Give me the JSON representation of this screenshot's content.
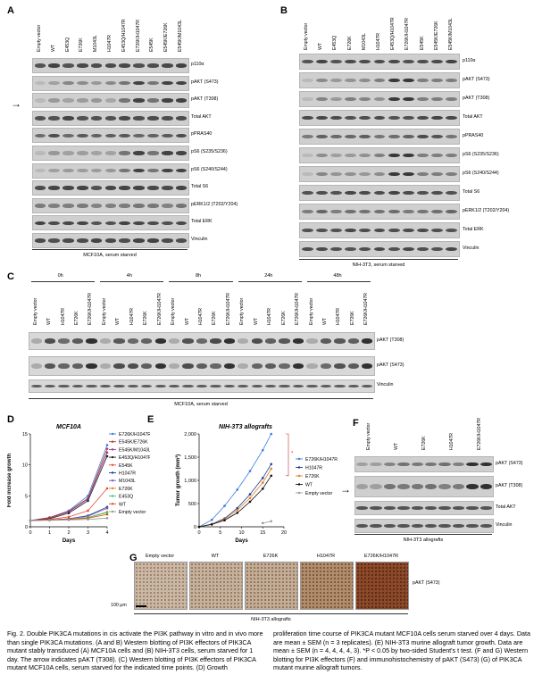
{
  "panels": {
    "A": "A",
    "B": "B",
    "C": "C",
    "D": "D",
    "E": "E",
    "F": "F",
    "G": "G"
  },
  "panelA": {
    "lanes": [
      "Empty vector",
      "WT",
      "E453Q",
      "E726K",
      "M1043L",
      "H1047R",
      "E453Q/H1047R",
      "E726K/H1047R",
      "E545K",
      "E545K/E726K",
      "E545K/M1043L"
    ],
    "rows": [
      "p110α",
      "pAKT (S473)",
      "pAKT (T308)",
      "Total AKT",
      "pPRAS40",
      "pS6 (S235/S236)",
      "pS6 (S240/S244)",
      "Total S6",
      "pERK1/2 (T202/Y204)",
      "Total ERK",
      "Vinculin"
    ],
    "caption": "MCF10A, serum starved",
    "arrow": "→"
  },
  "panelB": {
    "lanes": [
      "Empty vector",
      "WT",
      "E453Q",
      "E726K",
      "M1043L",
      "H1047R",
      "E453Q/H1047R",
      "E726K/H1047R",
      "E545K",
      "E545K/E726K",
      "E545K/M1043L"
    ],
    "rows": [
      "p110α",
      "pAKT (S473)",
      "pAKT (T308)",
      "Total AKT",
      "pPRAS40",
      "pS6 (S235/S236)",
      "pS6 (S240/S244)",
      "Total S6",
      "pERK1/2 (T202/Y204)",
      "Total ERK",
      "Vinculin"
    ],
    "caption": "NIH-3T3, serum starved"
  },
  "panelC": {
    "timepoints": [
      "0h",
      "4h",
      "8h",
      "24h",
      "48h"
    ],
    "lanes": [
      "Empty vector",
      "WT",
      "H1047R",
      "E726K",
      "E726K/H1047R"
    ],
    "rows": [
      "pAKT (T308)",
      "pAKT (S473)",
      "Vinculin"
    ],
    "caption": "MCF10A, serum starved"
  },
  "panelF": {
    "lanes": [
      "Empty vector",
      "WT",
      "E726K",
      "H1047R",
      "E726K/H1047R"
    ],
    "rows": [
      "pAKT (S473)",
      "pAKT (T308)",
      "Total AKT",
      "Vinculin"
    ],
    "caption": "NIH-3T3 allografts",
    "arrow": "→"
  },
  "panelG": {
    "labels": [
      "Empty vector",
      "WT",
      "E726K",
      "H1047R",
      "E726K/H1047R"
    ],
    "row_label": "pAKT (S473)",
    "scale": "100 µm",
    "caption": "NIH-3T3 allografts"
  },
  "chart_data": [
    {
      "type": "line",
      "title": "MCF10A",
      "xlabel": "Days",
      "ylabel": "Fold increase growth",
      "x": [
        0,
        1,
        2,
        3,
        4
      ],
      "xlim": [
        0,
        4
      ],
      "ylim": [
        0,
        15
      ],
      "xticks": [
        "0",
        "1",
        "2",
        "3",
        "4"
      ],
      "yticks": [
        "0",
        "5",
        "10",
        "15"
      ],
      "series": [
        {
          "name": "E726K/H1047R",
          "color": "#3b7ddd",
          "values": [
            1,
            1.5,
            2.6,
            5.0,
            13.2
          ]
        },
        {
          "name": "E545K/E726K",
          "color": "#c0392b",
          "values": [
            1,
            1.5,
            2.5,
            4.6,
            12.6
          ]
        },
        {
          "name": "E545K/M1043L",
          "color": "#8e3c8e",
          "values": [
            1,
            1.4,
            2.4,
            4.5,
            12.0
          ]
        },
        {
          "name": "E453Q/H1047R",
          "color": "#222222",
          "values": [
            1,
            1.3,
            2.2,
            4.2,
            11.4
          ]
        },
        {
          "name": "E545K",
          "color": "#e74c3c",
          "values": [
            1,
            1.2,
            1.6,
            2.6,
            6.2
          ]
        },
        {
          "name": "H1047R",
          "color": "#1a3f8f",
          "values": [
            1,
            1.1,
            1.3,
            1.8,
            3.2
          ]
        },
        {
          "name": "M1043L",
          "color": "#7d55c7",
          "values": [
            1,
            1.1,
            1.3,
            1.7,
            3.0
          ]
        },
        {
          "name": "E726K",
          "color": "#e67e22",
          "values": [
            1,
            1.1,
            1.2,
            1.5,
            2.4
          ]
        },
        {
          "name": "E453Q",
          "color": "#2ecc71",
          "values": [
            1,
            1.1,
            1.2,
            1.5,
            2.3
          ]
        },
        {
          "name": "WT",
          "color": "#d35400",
          "values": [
            1,
            1.1,
            1.2,
            1.4,
            2.0
          ]
        },
        {
          "name": "Empty vector",
          "color": "#999999",
          "values": [
            1,
            1.05,
            1.1,
            1.2,
            1.4
          ]
        }
      ]
    },
    {
      "type": "line",
      "title": "NIH-3T3 allografts",
      "xlabel": "Days",
      "ylabel": "Tumor growth (mm³)",
      "x": [
        0,
        3,
        6,
        9,
        12,
        15,
        17
      ],
      "xlim": [
        0,
        20
      ],
      "ylim": [
        0,
        2000
      ],
      "xticks": [
        "0",
        "5",
        "10",
        "15",
        "20"
      ],
      "yticks": [
        "0",
        "500",
        "1,000",
        "1,500",
        "2,000"
      ],
      "annotation": "*",
      "series": [
        {
          "name": "E726K/H1047R",
          "color": "#3b7ddd",
          "values": [
            0,
            150,
            450,
            800,
            1200,
            1650,
            2000
          ]
        },
        {
          "name": "H1047R",
          "color": "#1a3f8f",
          "values": [
            0,
            60,
            180,
            400,
            700,
            1050,
            1350
          ]
        },
        {
          "name": "E726K",
          "color": "#e67e22",
          "values": [
            0,
            55,
            160,
            360,
            620,
            950,
            1250
          ]
        },
        {
          "name": "WT",
          "color": "#111111",
          "values": [
            0,
            50,
            140,
            300,
            540,
            820,
            1100
          ]
        },
        {
          "name": "Empty vector",
          "color": "#999999",
          "values": [
            null,
            null,
            null,
            null,
            null,
            80,
            120
          ]
        }
      ]
    }
  ],
  "figure_caption": {
    "left": "Fig. 2. Double PIK3CA mutations in cis activate the PI3K pathway in vitro and in vivo more than single PIK3CA mutations. (A and B) Western blotting of PI3K effectors of PIK3CA mutant stably transduced (A) MCF10A cells and (B) NIH-3T3 cells, serum starved for 1 day. The arrow indicates pAKT (T308). (C) Western blotting of PI3K effectors of PIK3CA mutant MCF10A cells, serum starved for the indicated time points. (D) Growth",
    "right": "proliferation time course of PIK3CA mutant MCF10A cells serum starved over 4 days. Data are mean ± SEM (n = 3 replicates). (E) NIH-3T3 murine allograft tumor growth. Data are mean ± SEM (n = 4, 4, 4, 4, 3). *P < 0.05 by two-sided Student's t test. (F and G) Western blotting for PI3K effectors (F) and immunohistochemistry of pAKT (S473) (G) of PIK3CA mutant murine allograft tumors."
  }
}
